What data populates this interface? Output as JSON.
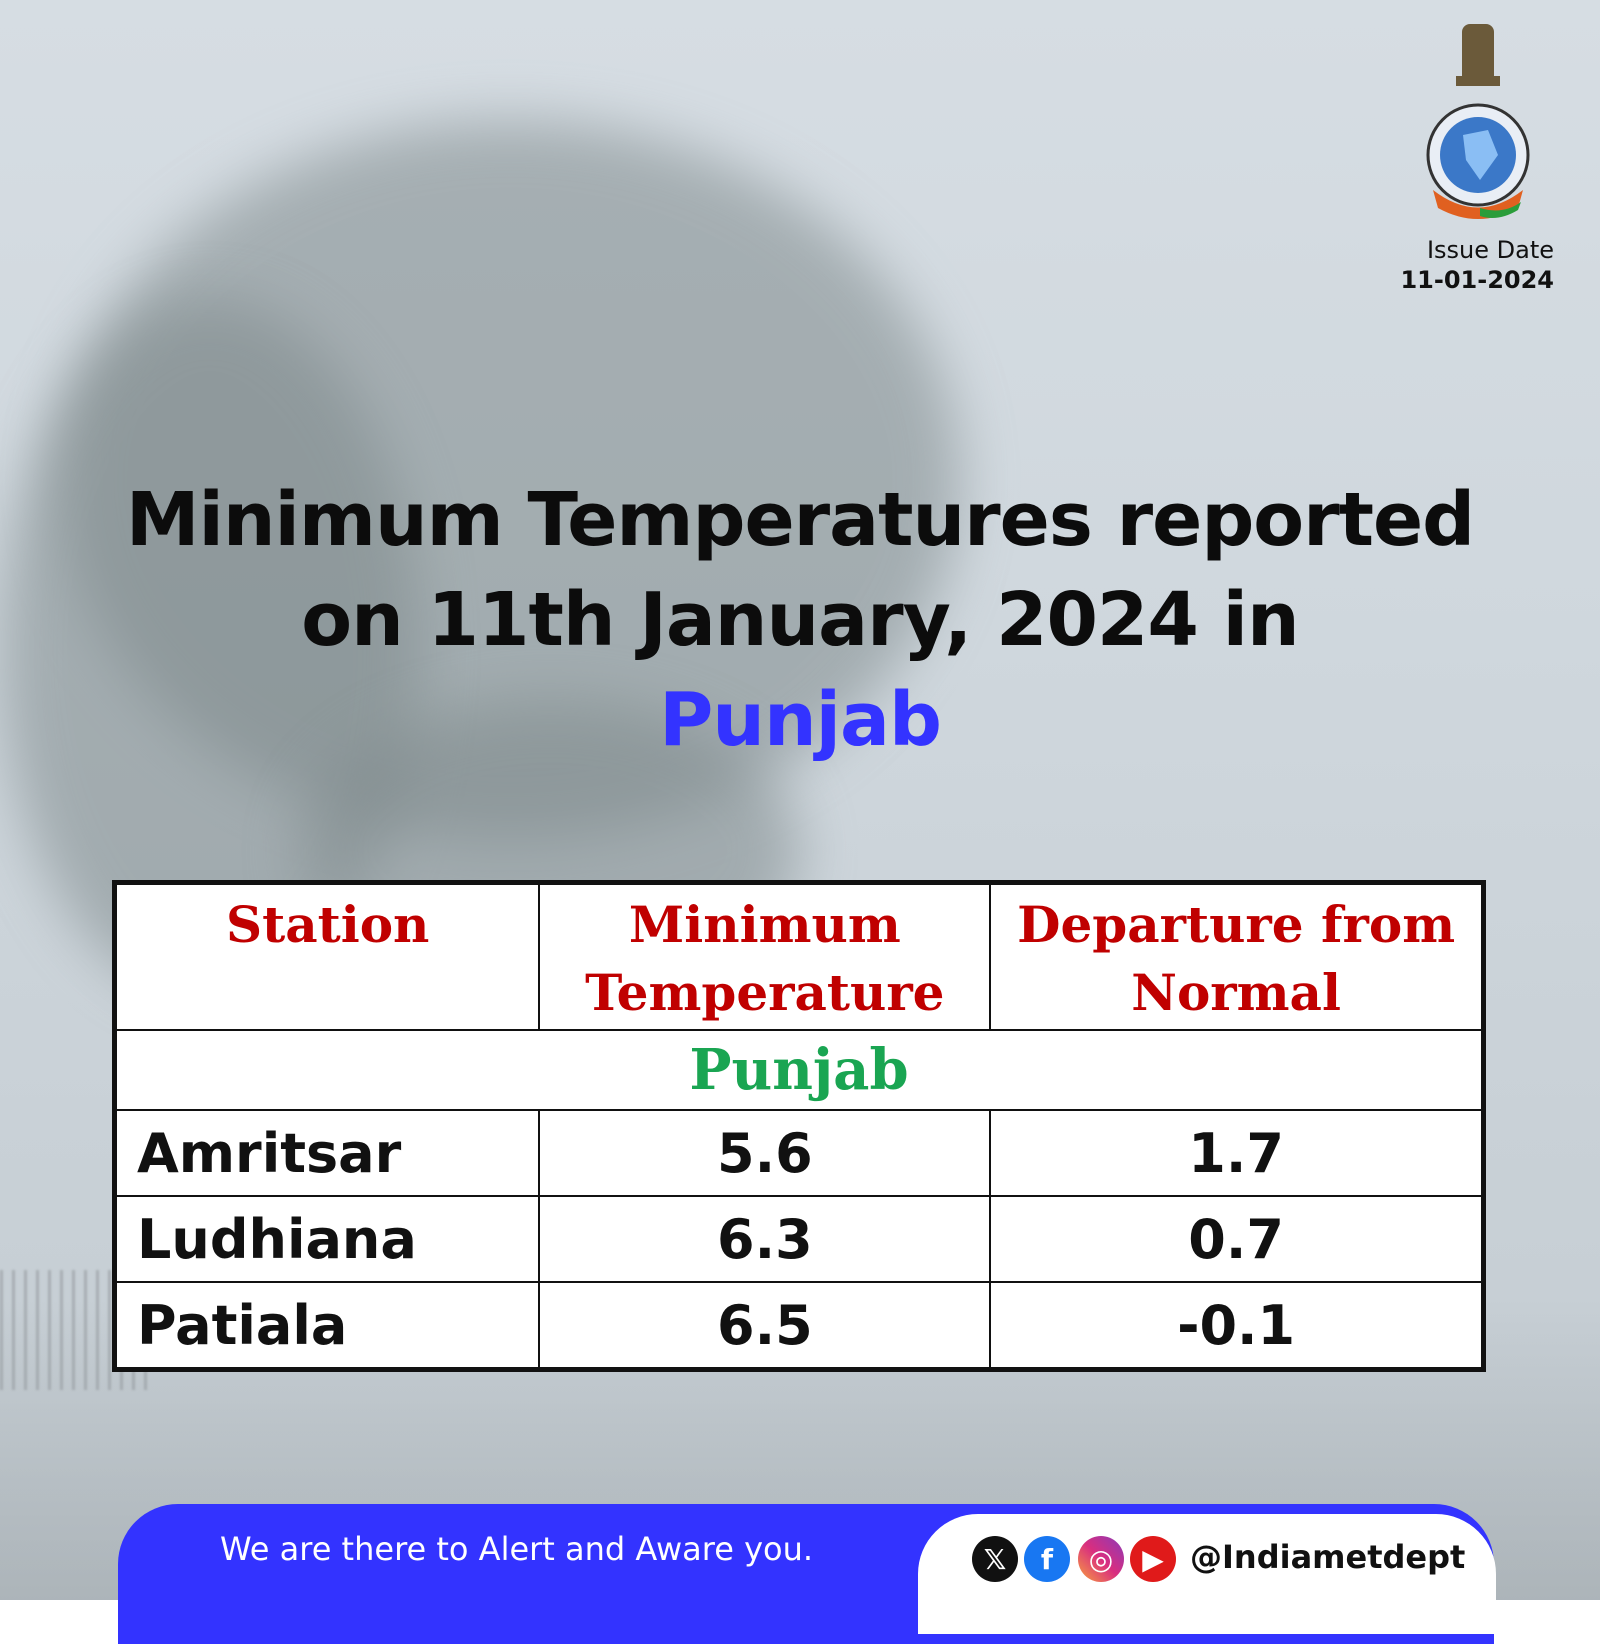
{
  "issue": {
    "label": "Issue Date",
    "date": "11-01-2024"
  },
  "title": {
    "line1": "Minimum Temperatures reported",
    "line2": "on 11th January, 2024 in",
    "state": "Punjab"
  },
  "table": {
    "headers": [
      "Station",
      "Minimum Temperature",
      "Departure from Normal"
    ],
    "group": "Punjab",
    "rows": [
      {
        "station": "Amritsar",
        "min_temp": "5.6",
        "departure": "1.7"
      },
      {
        "station": "Ludhiana",
        "min_temp": "6.3",
        "departure": "0.7"
      },
      {
        "station": "Patiala",
        "min_temp": "6.5",
        "departure": "-0.1"
      }
    ]
  },
  "footer": {
    "tagline": "We are there to Alert and Aware you.",
    "handle": "@Indiametdept",
    "icons": [
      "x-icon",
      "facebook-icon",
      "instagram-icon",
      "youtube-icon"
    ]
  },
  "colors": {
    "accent": "#3333ff",
    "header_red": "#c00000",
    "group_green": "#1aa552"
  }
}
